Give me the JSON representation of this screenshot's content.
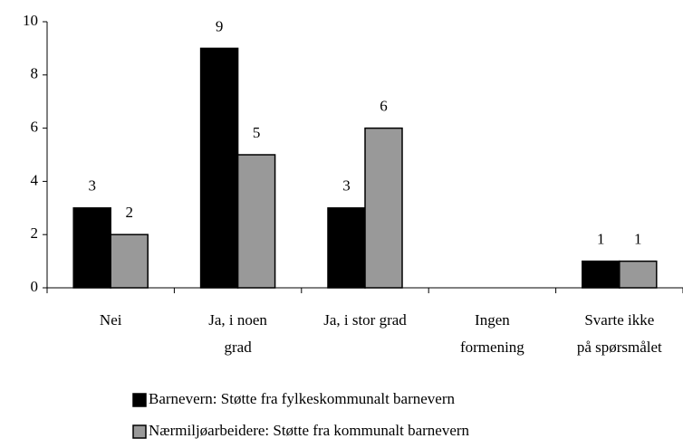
{
  "chart_data": {
    "type": "bar",
    "categories": [
      "Nei",
      "Ja, i noen\ngrad",
      "Ja, i stor grad",
      "Ingen\nformening",
      "Svarte ikke\npå spørsmålet"
    ],
    "series": [
      {
        "name": "Barnevern: Støtte fra fylkeskommunalt barnevern",
        "color": "#000000",
        "values": [
          3,
          9,
          3,
          null,
          1
        ]
      },
      {
        "name": "Nærmiljøarbeidere: Støtte fra kommunalt barnevern",
        "color": "#999999",
        "values": [
          2,
          5,
          6,
          null,
          1
        ]
      }
    ],
    "ylim": [
      0,
      10
    ],
    "yticks": [
      0,
      2,
      4,
      6,
      8,
      10
    ],
    "grid": false,
    "legend": "bottom"
  }
}
